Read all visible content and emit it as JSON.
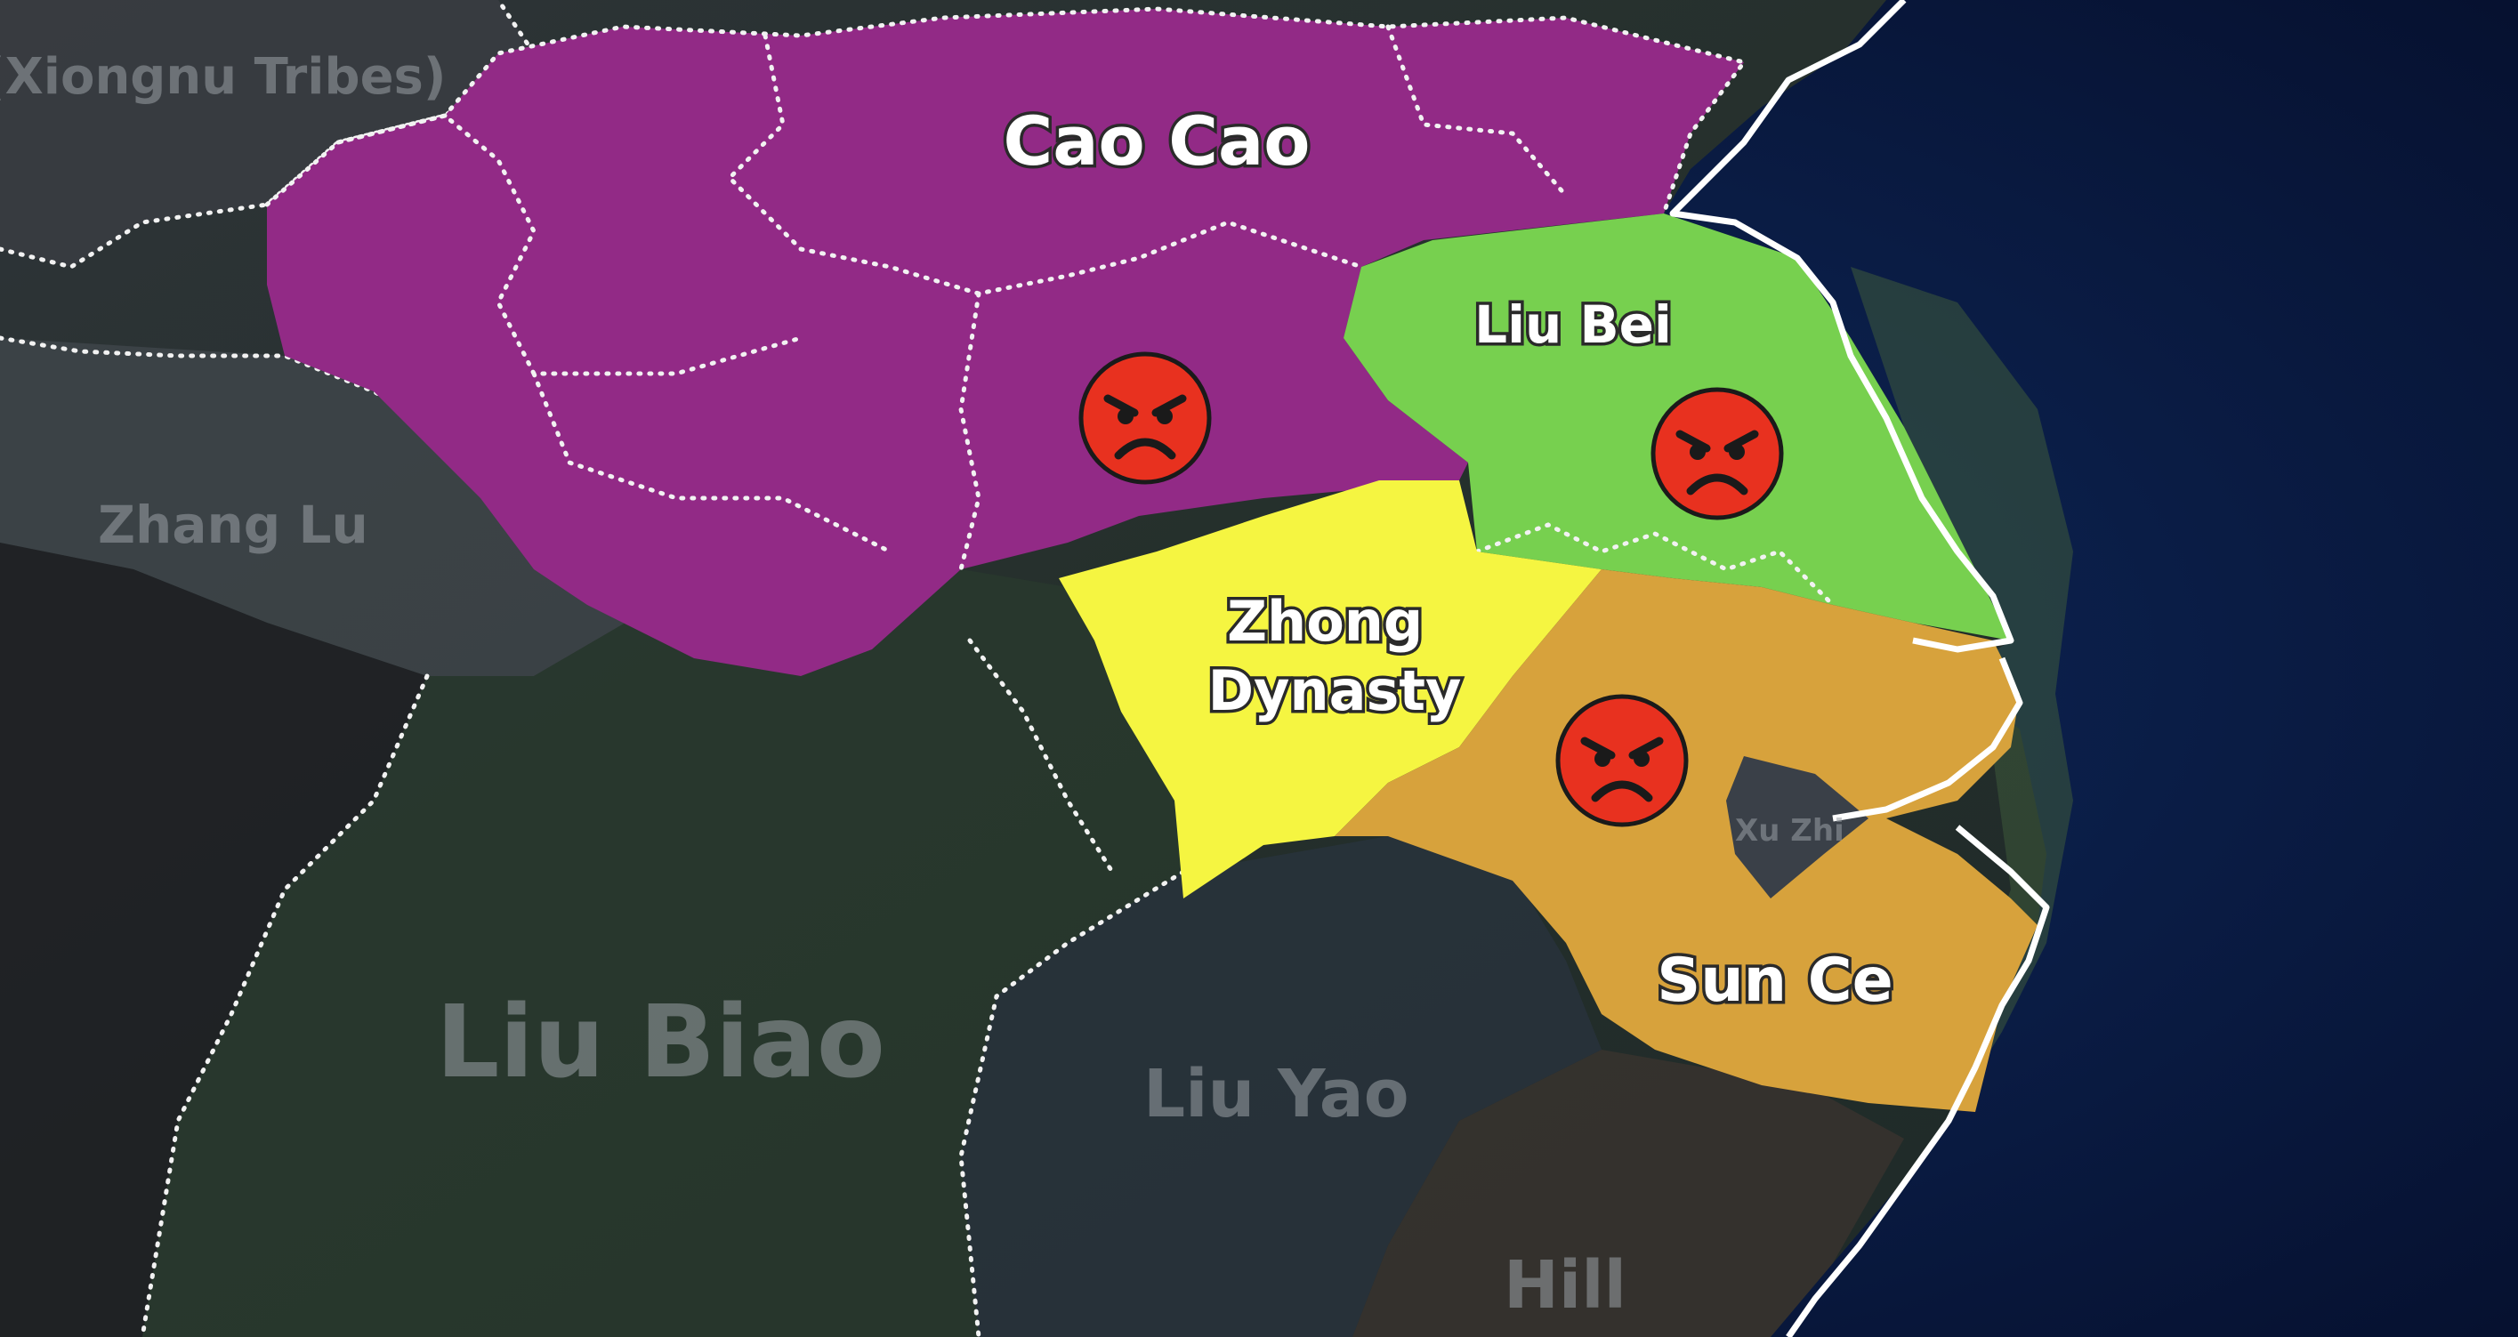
{
  "map": {
    "factions": [
      {
        "id": "cao",
        "label": "Cao Cao",
        "color": "#922a86",
        "angry": true
      },
      {
        "id": "liubei",
        "label": "Liu Bei",
        "color": "#77d04f",
        "angry": true
      },
      {
        "id": "zhong",
        "label": "Zhong\nDynasty",
        "color": "#f5f541",
        "angry": false
      },
      {
        "id": "sunce",
        "label": "Sun Ce",
        "color": "#d7a23c",
        "angry": true
      }
    ],
    "background_labels": {
      "xiongnu": "(Xiongnu Tribes)",
      "zhanglu": "Zhang Lu",
      "liubiao": "Liu Biao",
      "liuyao": "Liu Yao",
      "hill": "Hill",
      "xuzhi": "Xu Zhi"
    },
    "emoji_icon": "angry-face-icon",
    "colors": {
      "sea": "#0a1a3a",
      "land_dark": "#2a3530",
      "coast": "#ffffff"
    }
  }
}
